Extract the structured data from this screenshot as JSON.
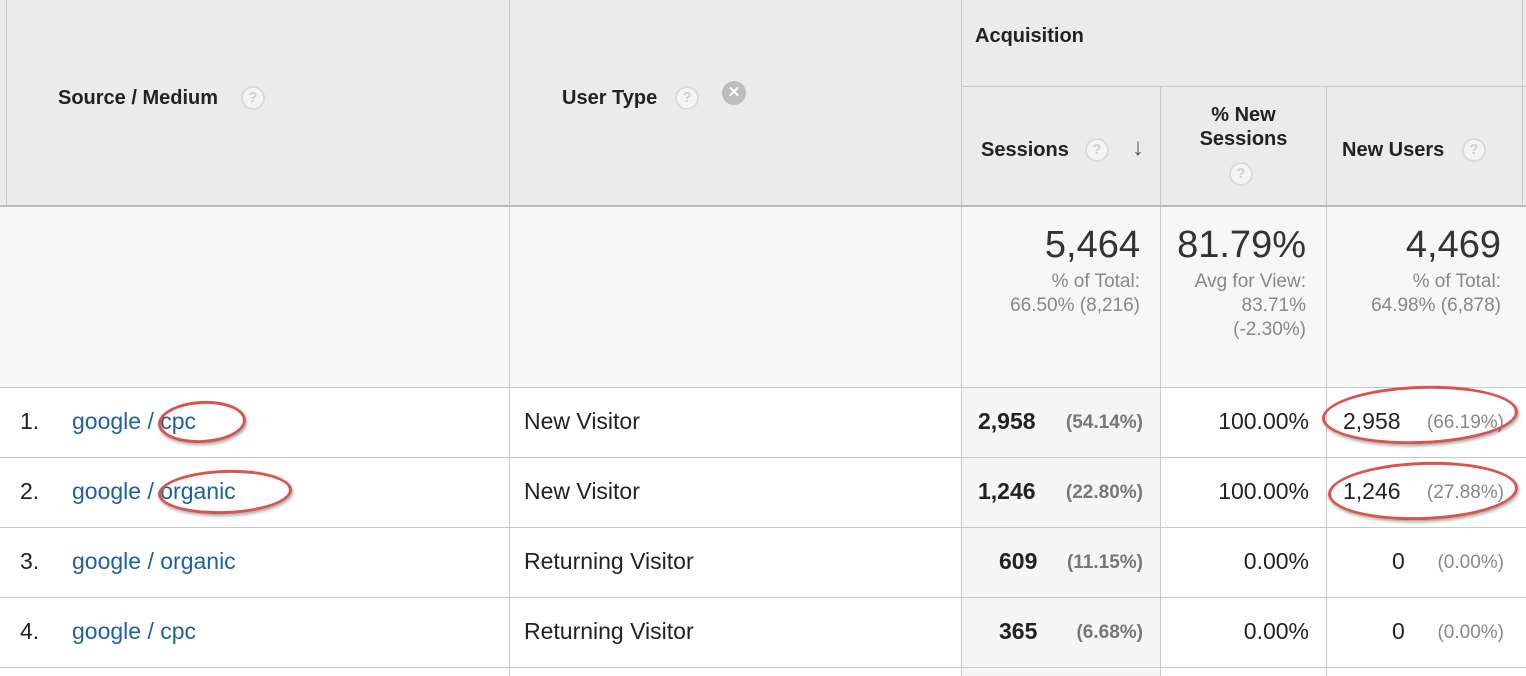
{
  "header": {
    "source_medium": "Source / Medium",
    "user_type": "User Type",
    "acquisition": "Acquisition",
    "sessions": "Sessions",
    "new_sessions_line1": "% New",
    "new_sessions_line2": "Sessions",
    "new_users": "New Users",
    "help_glyph": "?",
    "remove_glyph": "✕",
    "sort_glyph": "↓"
  },
  "totals": {
    "sessions": "5,464",
    "sessions_sub1": "% of Total:",
    "sessions_sub2": "66.50% (8,216)",
    "new_sessions": "81.79%",
    "new_sessions_sub1": "Avg for View:",
    "new_sessions_sub2": "83.71%",
    "new_sessions_sub3": "(-2.30%)",
    "new_users": "4,469",
    "new_users_sub1": "% of Total:",
    "new_users_sub2": "64.98% (6,878)"
  },
  "rows": [
    {
      "num": "1.",
      "source": "google",
      "medium": "cpc",
      "user_type": "New Visitor",
      "sessions": "2,958",
      "sessions_pct": "(54.14%)",
      "new_sessions": "100.00%",
      "new_users": "2,958",
      "new_users_pct": "(66.19%)"
    },
    {
      "num": "2.",
      "source": "google",
      "medium": "organic",
      "user_type": "New Visitor",
      "sessions": "1,246",
      "sessions_pct": "(22.80%)",
      "new_sessions": "100.00%",
      "new_users": "1,246",
      "new_users_pct": "(27.88%)"
    },
    {
      "num": "3.",
      "source": "google",
      "medium": "organic",
      "user_type": "Returning Visitor",
      "sessions": "609",
      "sessions_pct": "(11.15%)",
      "new_sessions": "0.00%",
      "new_users": "0",
      "new_users_pct": "(0.00%)"
    },
    {
      "num": "4.",
      "source": "google",
      "medium": "cpc",
      "user_type": "Returning Visitor",
      "sessions": "365",
      "sessions_pct": "(6.68%)",
      "new_sessions": "0.00%",
      "new_users": "0",
      "new_users_pct": "(0.00%)"
    }
  ],
  "separator": " / ",
  "colors": {
    "link": "#1f5fa3",
    "highlight_ring": "#d9534f",
    "header_bg": "#ebebeb"
  }
}
